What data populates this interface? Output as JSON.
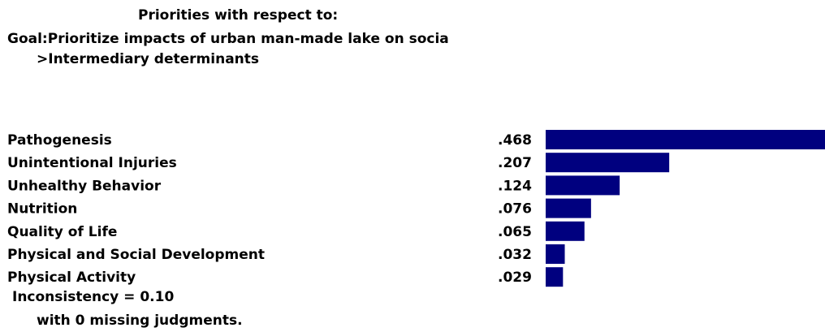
{
  "header": {
    "line1": "Priorities with respect to:",
    "line2": "Goal:Prioritize impacts of urban man-made lake on socia",
    "line3": ">Intermediary determinants"
  },
  "chart_data": {
    "type": "bar",
    "orientation": "horizontal",
    "categories": [
      "Pathogenesis",
      "Unintentional Injuries",
      "Unhealthy Behavior",
      "Nutrition",
      "Quality of Life",
      "Physical and Social Development",
      "Physical Activity"
    ],
    "values": [
      0.468,
      0.207,
      0.124,
      0.076,
      0.065,
      0.032,
      0.029
    ],
    "value_labels": [
      ".468",
      ".207",
      ".124",
      ".076",
      ".065",
      ".032",
      ".029"
    ],
    "bar_color": "#00007f",
    "xlim": [
      0,
      0.468
    ],
    "grid": false,
    "legend": "none"
  },
  "footer": {
    "inconsistency": "Inconsistency = 0.10",
    "missing": "with 0  missing judgments."
  }
}
